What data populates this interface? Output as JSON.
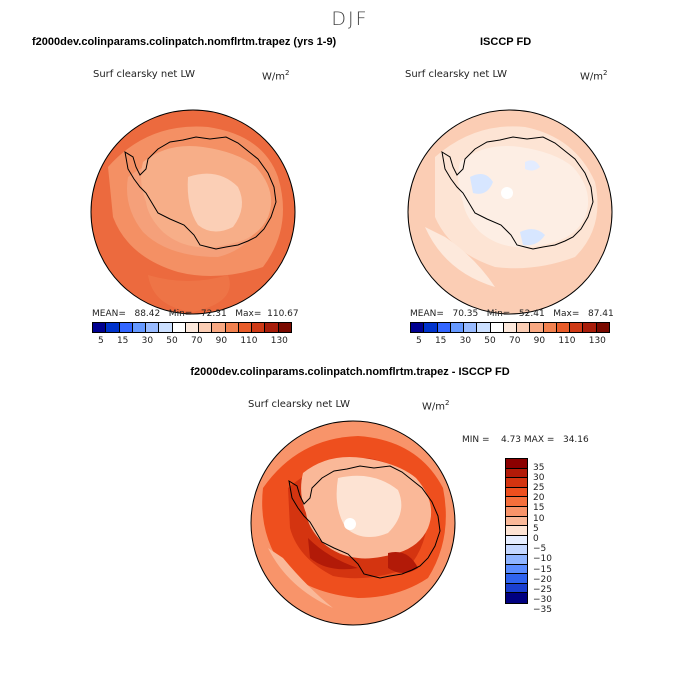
{
  "season": "DJF",
  "panels": [
    {
      "title": "f2000dev.colinparams.colinpatch.nomflrtm.trapez (yrs 1-9)",
      "variable": "Surf clearsky net LW",
      "units": "W/m",
      "units_exp": "2",
      "stats": "MEAN=   88.42   Min=   72.31   Max=  110.67",
      "colorbar_ticks": [
        "5",
        "15",
        "30",
        "50",
        "70",
        "90",
        "110",
        "130"
      ]
    },
    {
      "title": "ISCCP FD",
      "variable": "Surf clearsky net LW",
      "units": "W/m",
      "units_exp": "2",
      "stats": "MEAN=   70.35   Min=   52.41   Max=   87.41",
      "colorbar_ticks": [
        "5",
        "15",
        "30",
        "50",
        "70",
        "90",
        "110",
        "130"
      ]
    },
    {
      "title": "f2000dev.colinparams.colinpatch.nomflrtm.trapez - ISCCP FD",
      "variable": "Surf clearsky net LW",
      "units": "W/m",
      "units_exp": "2",
      "stats": "MIN =    4.73 MAX =   34.16",
      "colorbar_ticks": [
        "35",
        "30",
        "25",
        "20",
        "15",
        "10",
        "5",
        "0",
        "−5",
        "−10",
        "−15",
        "−20",
        "−25",
        "−30",
        "−35"
      ]
    }
  ],
  "colors": {
    "abs_scale": [
      "#000090",
      "#0033cc",
      "#3366ff",
      "#6699ff",
      "#99bbff",
      "#cce0ff",
      "#ffffff",
      "#fde9dc",
      "#fbcdb4",
      "#f8a882",
      "#f2814f",
      "#e85c2a",
      "#cf3a16",
      "#a81d0a",
      "#7a0a00"
    ],
    "diff_scale": [
      "#8b0000",
      "#b21a08",
      "#d43410",
      "#ee4f1e",
      "#f56f3c",
      "#f8946a",
      "#fab898",
      "#fde3d3",
      "#e6eeff",
      "#c4d7ff",
      "#8fb4ff",
      "#5a8cff",
      "#2f63ef",
      "#1a3fd0",
      "#000080"
    ],
    "land_outline": "#000000"
  }
}
